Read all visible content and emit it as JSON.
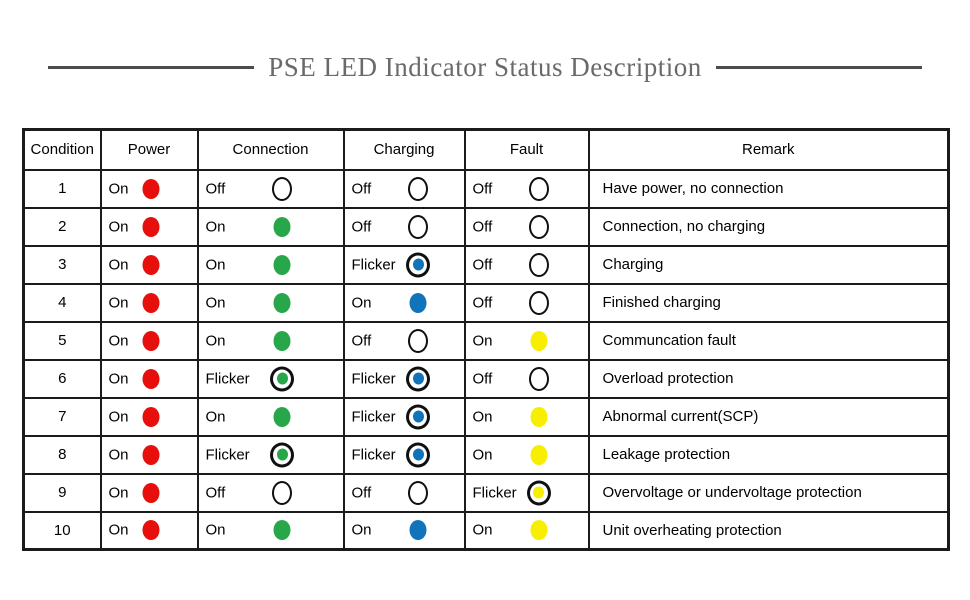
{
  "title": "PSE LED Indicator Status Description",
  "colors": {
    "red": "#e60f0c",
    "green": "#27a74a",
    "blue": "#1173b9",
    "yellow": "#f8ee00",
    "border": "#1b1b1b",
    "title_text": "#6a6a6a",
    "title_rule": "#4c4c4c"
  },
  "table": {
    "headers": [
      "Condition",
      "Power",
      "Connection",
      "Charging",
      "Fault",
      "Remark"
    ],
    "rows": [
      {
        "condition": "1",
        "power": {
          "label": "On",
          "state": "on",
          "color": "red"
        },
        "connection": {
          "label": "Off",
          "state": "off",
          "color": null
        },
        "charging": {
          "label": "Off",
          "state": "off",
          "color": null
        },
        "fault": {
          "label": "Off",
          "state": "off",
          "color": null
        },
        "remark": "Have power, no connection"
      },
      {
        "condition": "2",
        "power": {
          "label": "On",
          "state": "on",
          "color": "red"
        },
        "connection": {
          "label": "On",
          "state": "on",
          "color": "green"
        },
        "charging": {
          "label": "Off",
          "state": "off",
          "color": null
        },
        "fault": {
          "label": "Off",
          "state": "off",
          "color": null
        },
        "remark": "Connection, no charging"
      },
      {
        "condition": "3",
        "power": {
          "label": "On",
          "state": "on",
          "color": "red"
        },
        "connection": {
          "label": "On",
          "state": "on",
          "color": "green"
        },
        "charging": {
          "label": "Flicker",
          "state": "flicker",
          "color": "blue"
        },
        "fault": {
          "label": "Off",
          "state": "off",
          "color": null
        },
        "remark": "Charging"
      },
      {
        "condition": "4",
        "power": {
          "label": "On",
          "state": "on",
          "color": "red"
        },
        "connection": {
          "label": "On",
          "state": "on",
          "color": "green"
        },
        "charging": {
          "label": "On",
          "state": "on",
          "color": "blue"
        },
        "fault": {
          "label": "Off",
          "state": "off",
          "color": null
        },
        "remark": "Finished charging"
      },
      {
        "condition": "5",
        "power": {
          "label": "On",
          "state": "on",
          "color": "red"
        },
        "connection": {
          "label": "On",
          "state": "on",
          "color": "green"
        },
        "charging": {
          "label": "Off",
          "state": "off",
          "color": null
        },
        "fault": {
          "label": "On",
          "state": "on",
          "color": "yellow"
        },
        "remark": "Communcation fault"
      },
      {
        "condition": "6",
        "power": {
          "label": "On",
          "state": "on",
          "color": "red"
        },
        "connection": {
          "label": "Flicker",
          "state": "flicker",
          "color": "green"
        },
        "charging": {
          "label": "Flicker",
          "state": "flicker",
          "color": "blue"
        },
        "fault": {
          "label": "Off",
          "state": "off",
          "color": null
        },
        "remark": "Overload protection"
      },
      {
        "condition": "7",
        "power": {
          "label": "On",
          "state": "on",
          "color": "red"
        },
        "connection": {
          "label": "On",
          "state": "on",
          "color": "green"
        },
        "charging": {
          "label": "Flicker",
          "state": "flicker",
          "color": "blue"
        },
        "fault": {
          "label": "On",
          "state": "on",
          "color": "yellow"
        },
        "remark": "Abnormal current(SCP)"
      },
      {
        "condition": "8",
        "power": {
          "label": "On",
          "state": "on",
          "color": "red"
        },
        "connection": {
          "label": "Flicker",
          "state": "flicker",
          "color": "green"
        },
        "charging": {
          "label": "Flicker",
          "state": "flicker",
          "color": "blue"
        },
        "fault": {
          "label": "On",
          "state": "on",
          "color": "yellow"
        },
        "remark": "Leakage protection"
      },
      {
        "condition": "9",
        "power": {
          "label": "On",
          "state": "on",
          "color": "red"
        },
        "connection": {
          "label": "Off",
          "state": "off",
          "color": null
        },
        "charging": {
          "label": "Off",
          "state": "off",
          "color": null
        },
        "fault": {
          "label": "Flicker",
          "state": "flicker",
          "color": "yellow"
        },
        "remark": "Overvoltage or undervoltage protection"
      },
      {
        "condition": "10",
        "power": {
          "label": "On",
          "state": "on",
          "color": "red"
        },
        "connection": {
          "label": "On",
          "state": "on",
          "color": "green"
        },
        "charging": {
          "label": "On",
          "state": "on",
          "color": "blue"
        },
        "fault": {
          "label": "On",
          "state": "on",
          "color": "yellow"
        },
        "remark": "Unit overheating protection"
      }
    ]
  }
}
